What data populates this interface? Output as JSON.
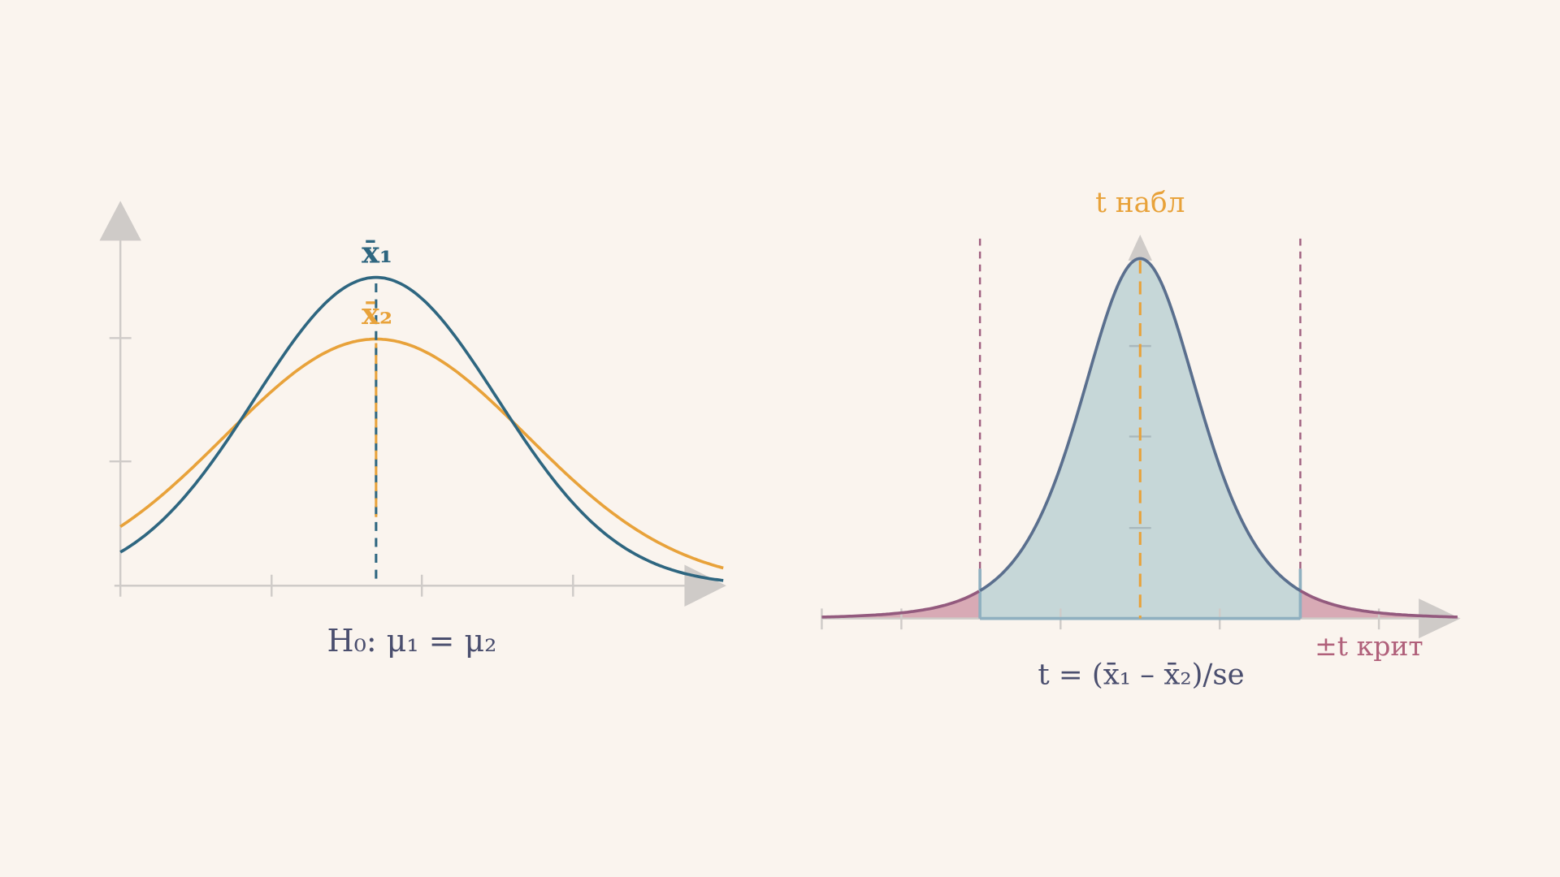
{
  "left_panel": {
    "mean1_label": "x̄₁",
    "mean2_label": "x̄₂",
    "hypothesis": "H₀:  μ₁ = μ₂"
  },
  "right_panel": {
    "observed_label": "t набл",
    "critical_label": "±t крит",
    "formula": "t = (x̄₁ – x̄₂)/se"
  }
}
